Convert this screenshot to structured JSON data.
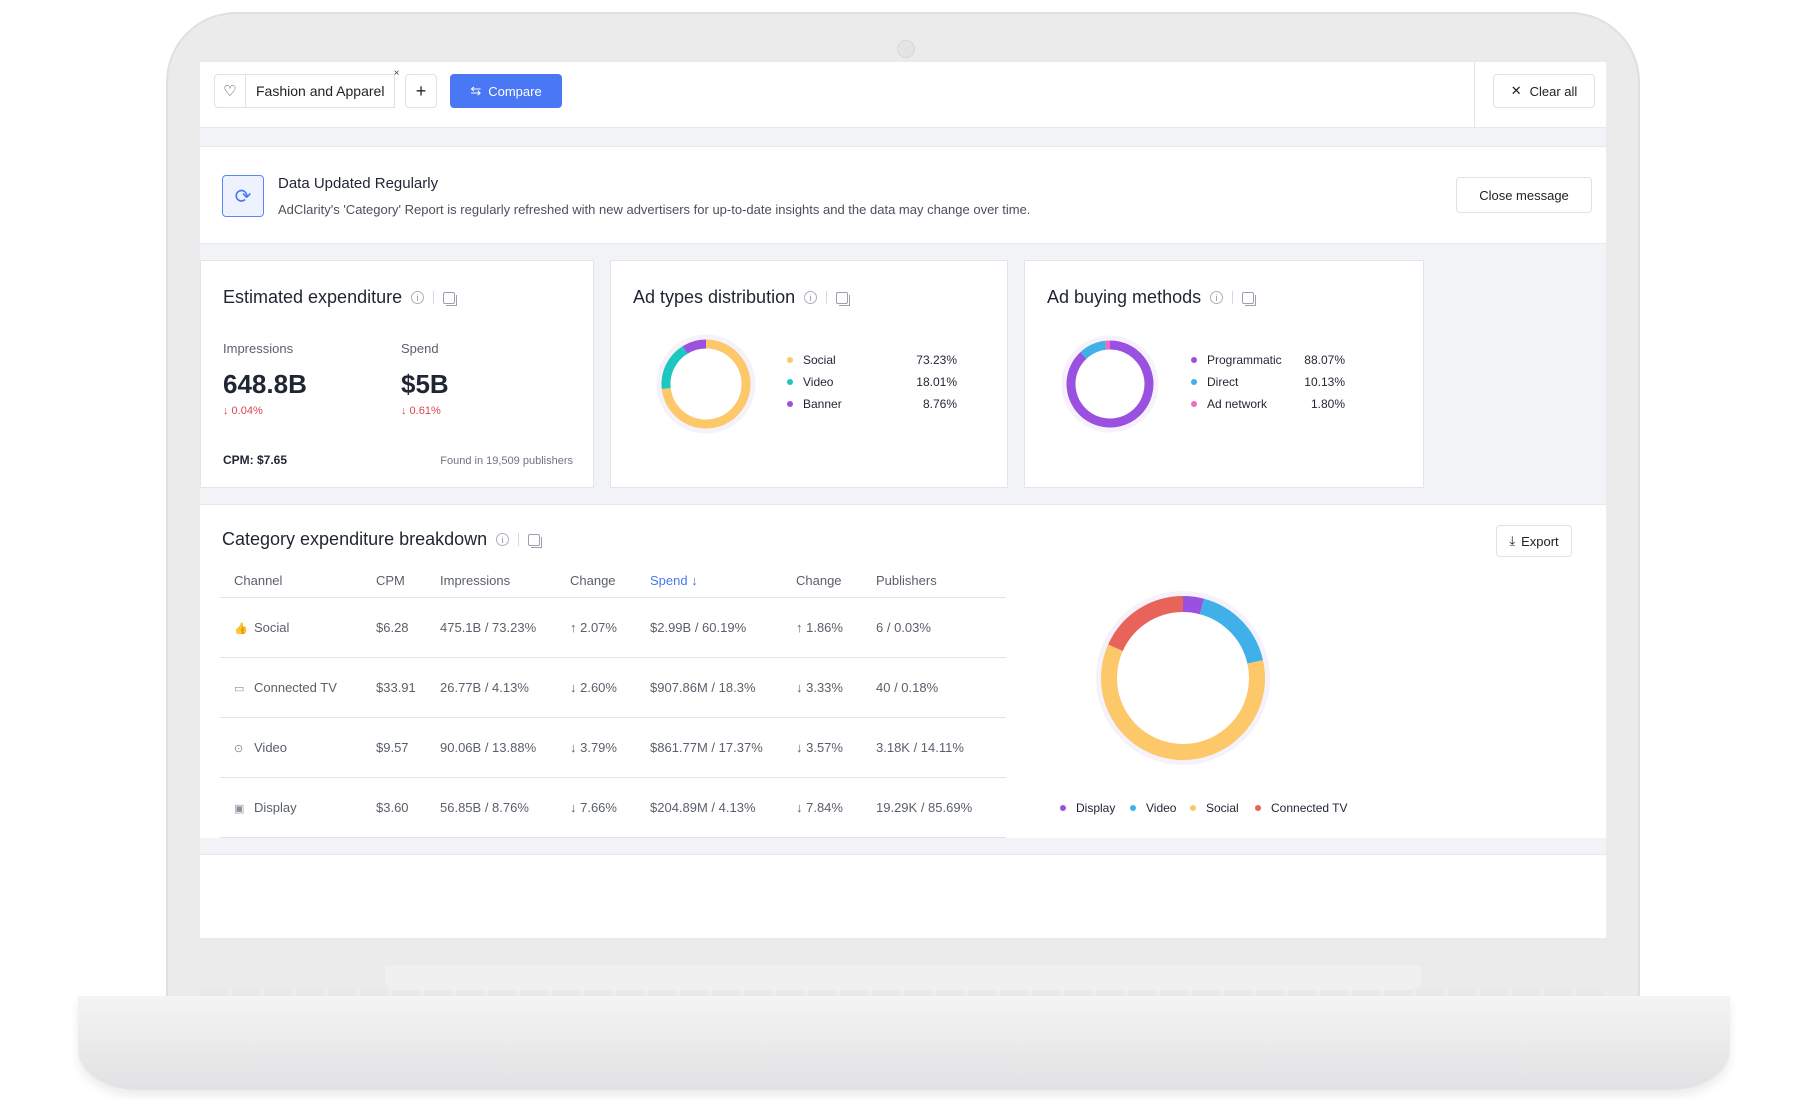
{
  "topbar": {
    "chip_label": "Fashion and Apparel",
    "chip_remove": "×",
    "add_label": "+",
    "compare_label": "Compare",
    "clear_label": "Clear all"
  },
  "message": {
    "title": "Data Updated Regularly",
    "text": "AdClarity's 'Category' Report is regularly refreshed with new advertisers for up-to-date insights and the data may change over time.",
    "close_label": "Close message"
  },
  "expenditure": {
    "title": "Estimated expenditure",
    "impressions_label": "Impressions",
    "impressions_value": "648.8B",
    "impressions_delta": "↓ 0.04%",
    "spend_label": "Spend",
    "spend_value": "$5B",
    "spend_delta": "↓ 0.61%",
    "cpm": "CPM: $7.65",
    "found": "Found in 19,509 publishers"
  },
  "ad_types": {
    "title": "Ad types distribution",
    "items": [
      {
        "label": "Social",
        "value": "73.23%",
        "pct": 73.23,
        "color": "#fdc86a"
      },
      {
        "label": "Video",
        "value": "18.01%",
        "pct": 18.01,
        "color": "#1cc7c1"
      },
      {
        "label": "Banner",
        "value": "8.76%",
        "pct": 8.76,
        "color": "#9b51e0"
      }
    ]
  },
  "buying": {
    "title": "Ad buying methods",
    "items": [
      {
        "label": "Programmatic",
        "value": "88.07%",
        "pct": 88.07,
        "color": "#9b51e0"
      },
      {
        "label": "Direct",
        "value": "10.13%",
        "pct": 10.13,
        "color": "#3fb1e8"
      },
      {
        "label": "Ad network",
        "value": "1.80%",
        "pct": 1.8,
        "color": "#f06cc2"
      }
    ]
  },
  "breakdown": {
    "title": "Category expenditure breakdown",
    "export_label": "Export",
    "headers": [
      "Channel",
      "CPM",
      "Impressions",
      "Change",
      "Spend ↓",
      "Change",
      "Publishers"
    ],
    "rows": [
      {
        "channel": "Social",
        "icon": "thumbs-up-icon",
        "glyph": "👍",
        "cpm": "$6.28",
        "impressions": "475.1B / 73.23%",
        "change1": "↑ 2.07%",
        "dir1": "up",
        "spend": "$2.99B / 60.19%",
        "change2": "↑ 1.86%",
        "dir2": "up",
        "publishers": "6 / 0.03%"
      },
      {
        "channel": "Connected TV",
        "icon": "tv-icon",
        "glyph": "▭",
        "cpm": "$33.91",
        "impressions": "26.77B / 4.13%",
        "change1": "↓ 2.60%",
        "dir1": "down",
        "spend": "$907.86M / 18.3%",
        "change2": "↓ 3.33%",
        "dir2": "down",
        "publishers": "40 / 0.18%"
      },
      {
        "channel": "Video",
        "icon": "play-icon",
        "glyph": "⊙",
        "cpm": "$9.57",
        "impressions": "90.06B / 13.88%",
        "change1": "↓ 3.79%",
        "dir1": "down",
        "spend": "$861.77M / 17.37%",
        "change2": "↓ 3.57%",
        "dir2": "down",
        "publishers": "3.18K / 14.11%"
      },
      {
        "channel": "Display",
        "icon": "image-icon",
        "glyph": "▣",
        "cpm": "$3.60",
        "impressions": "56.85B / 8.76%",
        "change1": "↓ 7.66%",
        "dir1": "down",
        "spend": "$204.89M / 4.13%",
        "change2": "↓ 7.84%",
        "dir2": "down",
        "publishers": "19.29K / 85.69%"
      }
    ],
    "donut": [
      {
        "label": "Display",
        "pct": 4.13,
        "color": "#9b51e0"
      },
      {
        "label": "Video",
        "pct": 17.37,
        "color": "#3fb1e8"
      },
      {
        "label": "Social",
        "pct": 60.19,
        "color": "#fdc86a"
      },
      {
        "label": "Connected TV",
        "pct": 18.3,
        "color": "#e8645a"
      }
    ],
    "legend": [
      {
        "label": "Display",
        "color": "#9b51e0"
      },
      {
        "label": "Video",
        "color": "#3fb1e8"
      },
      {
        "label": "Social",
        "color": "#fdc86a"
      },
      {
        "label": "Connected TV",
        "color": "#e8645a"
      }
    ]
  }
}
